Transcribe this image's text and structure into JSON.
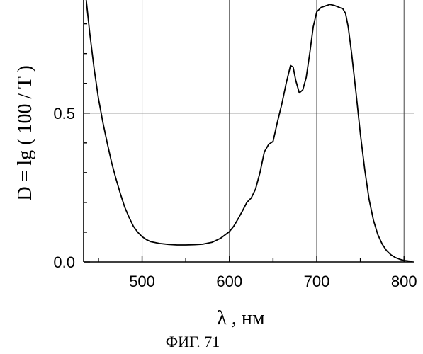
{
  "chart_data": {
    "type": "line",
    "xlabel": "λ , нм",
    "ylabel": "D = lg ( 100 / T )",
    "caption": "ФИГ. 71",
    "xlim": [
      433,
      812
    ],
    "ylim": [
      0,
      0.88
    ],
    "x_ticks": [
      500,
      600,
      700,
      800
    ],
    "y_ticks": [
      0.0,
      0.5
    ],
    "x_tick_labels": [
      "500",
      "600",
      "700",
      "800"
    ],
    "y_tick_labels": [
      "0.0",
      "0.5"
    ],
    "grid": true,
    "series": [
      {
        "x": [
          436,
          440,
          445,
          450,
          455,
          460,
          465,
          470,
          475,
          480,
          485,
          490,
          495,
          500,
          505,
          510,
          520,
          530,
          540,
          550,
          560,
          570,
          580,
          590,
          600,
          605,
          610,
          615,
          620,
          625,
          630,
          635,
          640,
          645,
          650,
          655,
          660,
          665,
          670,
          673,
          676,
          680,
          684,
          688,
          692,
          696,
          700,
          705,
          710,
          715,
          720,
          725,
          730,
          733,
          736,
          740,
          745,
          750,
          755,
          760,
          765,
          770,
          775,
          780,
          785,
          790,
          795,
          800,
          805,
          810
        ],
        "y": [
          0.88,
          0.77,
          0.65,
          0.55,
          0.47,
          0.4,
          0.335,
          0.28,
          0.23,
          0.185,
          0.15,
          0.12,
          0.1,
          0.085,
          0.075,
          0.068,
          0.062,
          0.059,
          0.057,
          0.057,
          0.058,
          0.06,
          0.066,
          0.08,
          0.102,
          0.12,
          0.145,
          0.172,
          0.2,
          0.215,
          0.245,
          0.3,
          0.37,
          0.395,
          0.405,
          0.47,
          0.53,
          0.6,
          0.66,
          0.655,
          0.61,
          0.568,
          0.578,
          0.62,
          0.7,
          0.79,
          0.84,
          0.855,
          0.86,
          0.865,
          0.862,
          0.856,
          0.85,
          0.835,
          0.79,
          0.7,
          0.57,
          0.43,
          0.31,
          0.21,
          0.14,
          0.092,
          0.06,
          0.038,
          0.024,
          0.015,
          0.009,
          0.005,
          0.003,
          0.002
        ]
      }
    ]
  }
}
